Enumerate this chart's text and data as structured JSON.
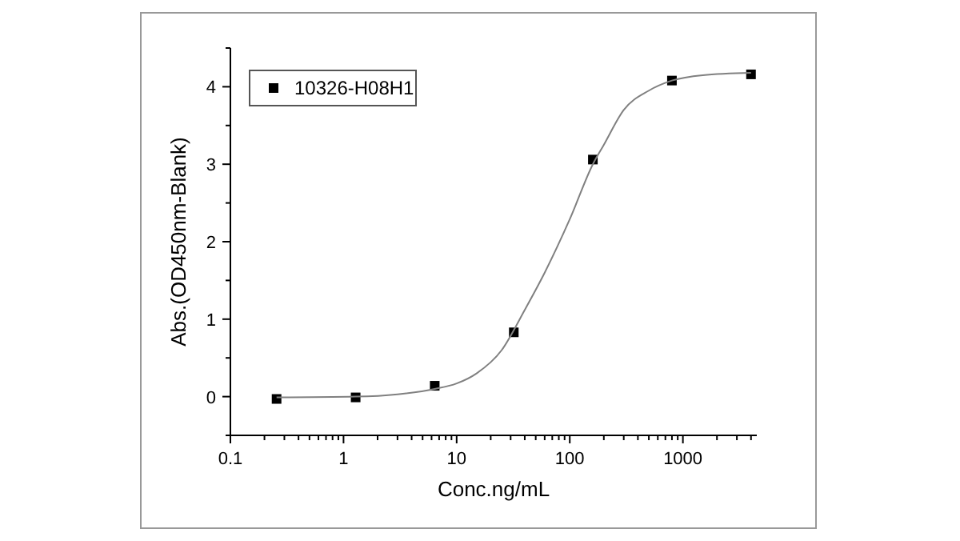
{
  "chart_data": {
    "type": "scatter",
    "xlabel": "Conc.ng/mL",
    "ylabel": "Abs.(OD450nm-Blank)",
    "log": "x",
    "xlim": [
      0.1,
      4500
    ],
    "ylim": [
      -0.5,
      4.5
    ],
    "xticks": [
      0.1,
      {
        "value": 0.2,
        "label": null
      },
      {
        "value": 0.3,
        "label": null
      },
      {
        "value": 0.4,
        "label": null
      },
      {
        "value": 0.5,
        "label": null
      },
      {
        "value": 0.6,
        "label": null
      },
      {
        "value": 0.7,
        "label": null
      },
      {
        "value": 0.8,
        "label": null
      },
      {
        "value": 0.9,
        "label": null
      },
      1,
      {
        "value": 2,
        "label": null
      },
      {
        "value": 3,
        "label": null
      },
      {
        "value": 4,
        "label": null
      },
      {
        "value": 5,
        "label": null
      },
      {
        "value": 6,
        "label": null
      },
      {
        "value": 7,
        "label": null
      },
      {
        "value": 8,
        "label": null
      },
      {
        "value": 9,
        "label": null
      },
      10,
      {
        "value": 20,
        "label": null
      },
      {
        "value": 30,
        "label": null
      },
      {
        "value": 40,
        "label": null
      },
      {
        "value": 50,
        "label": null
      },
      {
        "value": 60,
        "label": null
      },
      {
        "value": 70,
        "label": null
      },
      {
        "value": 80,
        "label": null
      },
      {
        "value": 90,
        "label": null
      },
      100,
      {
        "value": 200,
        "label": null
      },
      {
        "value": 300,
        "label": null
      },
      {
        "value": 400,
        "label": null
      },
      {
        "value": 500,
        "label": null
      },
      {
        "value": 600,
        "label": null
      },
      {
        "value": 700,
        "label": null
      },
      {
        "value": 800,
        "label": null
      },
      {
        "value": 900,
        "label": null
      },
      1000,
      {
        "value": 2000,
        "label": null
      },
      {
        "value": 3000,
        "label": null
      },
      {
        "value": 4000,
        "label": null
      }
    ],
    "yticks": [
      {
        "value": -0.5,
        "label": null
      },
      0,
      {
        "value": 0.5,
        "label": null
      },
      1,
      {
        "value": 1.5,
        "label": null
      },
      2,
      {
        "value": 2.5,
        "label": null
      },
      3,
      {
        "value": 3.5,
        "label": null
      },
      4,
      {
        "value": 4.5,
        "label": null
      }
    ],
    "grid": false,
    "legend": "top left",
    "marker": "square",
    "series": [
      {
        "name": "10326-H08H1",
        "color": "#000000",
        "x": [
          0.256,
          1.28,
          6.4,
          32,
          160,
          800,
          4000
        ],
        "values": [
          -0.03,
          -0.01,
          0.14,
          0.83,
          3.06,
          4.08,
          4.16
        ]
      },
      {
        "type": "line",
        "color": "#808080",
        "marker": "none",
        "x": [
          0.256,
          1.28,
          3,
          6.4,
          10,
          15,
          25,
          40,
          60,
          100,
          160,
          200,
          300,
          500,
          800,
          1500,
          4000
        ],
        "values": [
          -0.01,
          0.0,
          0.03,
          0.1,
          0.17,
          0.3,
          0.6,
          1.12,
          1.6,
          2.29,
          3.0,
          3.25,
          3.7,
          3.95,
          4.08,
          4.15,
          4.18
        ]
      }
    ]
  }
}
